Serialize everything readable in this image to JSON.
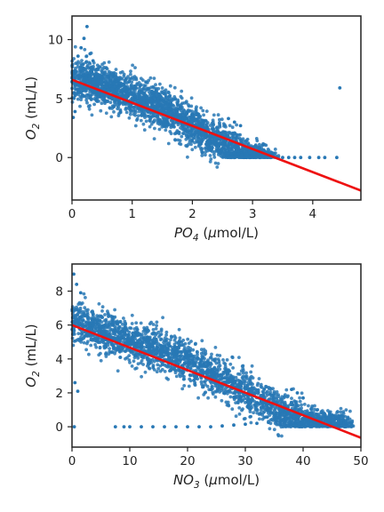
{
  "chart_data": [
    {
      "type": "scatter",
      "xlabel": {
        "main": "PO",
        "sub": "4",
        "unit_pre": " (",
        "unit_mu": "μ",
        "unit_post": "mol/L)"
      },
      "ylabel": {
        "main": "O",
        "sub": "2",
        "unit": " (mL/L)"
      },
      "xlim": [
        0,
        4.8
      ],
      "ylim": [
        -3.6,
        12
      ],
      "xticks": [
        0,
        1,
        2,
        3,
        4
      ],
      "yticks": [
        0,
        5,
        10
      ],
      "point_color": "#2878b5",
      "fit_color": "#ee1111",
      "fit_line": {
        "x": [
          0,
          4.8
        ],
        "y": [
          6.6,
          -2.8
        ]
      },
      "cluster_points": [
        [
          0.0,
          6.9
        ],
        [
          0.1,
          6.7
        ],
        [
          0.2,
          6.6
        ],
        [
          0.3,
          6.5
        ],
        [
          0.4,
          6.3
        ],
        [
          0.5,
          6.1
        ],
        [
          0.6,
          5.9
        ],
        [
          0.7,
          5.8
        ],
        [
          0.8,
          5.6
        ],
        [
          0.9,
          5.4
        ],
        [
          1.0,
          5.2
        ],
        [
          1.1,
          5.0
        ],
        [
          1.2,
          4.8
        ],
        [
          1.3,
          4.6
        ],
        [
          1.4,
          4.4
        ],
        [
          1.5,
          4.2
        ],
        [
          1.6,
          3.9
        ],
        [
          1.7,
          3.6
        ],
        [
          1.8,
          3.3
        ],
        [
          1.9,
          3.0
        ],
        [
          2.0,
          2.7
        ],
        [
          2.1,
          2.4
        ],
        [
          2.2,
          2.0
        ],
        [
          2.3,
          1.7
        ],
        [
          2.4,
          1.4
        ],
        [
          2.5,
          1.1
        ],
        [
          2.6,
          0.8
        ],
        [
          2.7,
          0.6
        ],
        [
          2.8,
          0.4
        ],
        [
          2.9,
          0.25
        ],
        [
          3.0,
          0.15
        ],
        [
          3.1,
          0.08
        ],
        [
          3.2,
          0.03
        ],
        [
          3.3,
          0.01
        ]
      ],
      "outliers": [
        [
          0.25,
          11.1
        ],
        [
          0.2,
          10.1
        ],
        [
          0.15,
          9.3
        ],
        [
          0.1,
          8.6
        ],
        [
          0.05,
          3.9
        ],
        [
          0.02,
          3.4
        ],
        [
          0.3,
          8.8
        ],
        [
          0.35,
          8.2
        ],
        [
          2.6,
          3.3
        ],
        [
          2.7,
          3.0
        ],
        [
          2.8,
          2.7
        ],
        [
          4.45,
          5.9
        ],
        [
          3.3,
          0.0
        ],
        [
          3.4,
          0.0
        ],
        [
          3.5,
          0.0
        ],
        [
          3.6,
          0.0
        ],
        [
          3.7,
          0.0
        ],
        [
          3.8,
          0.0
        ],
        [
          3.95,
          0.0
        ],
        [
          4.1,
          0.0
        ],
        [
          4.2,
          0.0
        ],
        [
          4.4,
          0.0
        ]
      ]
    },
    {
      "type": "scatter",
      "xlabel": {
        "main": "NO",
        "sub": "3",
        "unit_pre": " (",
        "unit_mu": "μ",
        "unit_post": "mol/L)"
      },
      "ylabel": {
        "main": "O",
        "sub": "2",
        "unit": " (mL/L)"
      },
      "xlim": [
        0,
        50
      ],
      "ylim": [
        -1.2,
        9.6
      ],
      "xticks": [
        0,
        10,
        20,
        30,
        40,
        50
      ],
      "yticks": [
        0,
        2,
        4,
        6,
        8
      ],
      "point_color": "#2878b5",
      "fit_color": "#ee1111",
      "fit_line": {
        "x": [
          0,
          50
        ],
        "y": [
          6.0,
          -0.65
        ]
      },
      "cluster_points": [
        [
          0,
          6.3
        ],
        [
          2,
          6.0
        ],
        [
          4,
          5.7
        ],
        [
          6,
          5.5
        ],
        [
          8,
          5.3
        ],
        [
          10,
          5.0
        ],
        [
          12,
          4.8
        ],
        [
          14,
          4.6
        ],
        [
          16,
          4.4
        ],
        [
          18,
          4.1
        ],
        [
          20,
          3.8
        ],
        [
          22,
          3.5
        ],
        [
          24,
          3.2
        ],
        [
          26,
          2.8
        ],
        [
          28,
          2.5
        ],
        [
          30,
          2.1
        ],
        [
          32,
          1.7
        ],
        [
          34,
          1.3
        ],
        [
          36,
          1.0
        ],
        [
          38,
          0.7
        ],
        [
          40,
          0.5
        ],
        [
          42,
          0.35
        ],
        [
          44,
          0.25
        ],
        [
          46,
          0.2
        ],
        [
          48,
          0.18
        ]
      ],
      "outliers": [
        [
          0.3,
          9.0
        ],
        [
          0.8,
          8.4
        ],
        [
          1.5,
          7.9
        ],
        [
          0.5,
          2.6
        ],
        [
          1.0,
          2.1
        ],
        [
          0.4,
          0.0
        ],
        [
          7.5,
          0.0
        ],
        [
          9,
          0.0
        ],
        [
          10,
          0.0
        ],
        [
          12,
          0.0
        ],
        [
          14,
          0.0
        ],
        [
          16,
          0.0
        ],
        [
          18,
          0.0
        ],
        [
          20,
          0.0
        ],
        [
          22,
          0.0
        ],
        [
          24,
          0.0
        ],
        [
          26,
          0.05
        ],
        [
          28,
          0.1
        ],
        [
          30,
          0.15
        ],
        [
          32,
          0.2
        ],
        [
          34,
          0.25
        ],
        [
          36,
          0.25
        ],
        [
          38,
          2.2
        ],
        [
          39,
          2.0
        ],
        [
          40,
          1.7
        ]
      ]
    }
  ]
}
